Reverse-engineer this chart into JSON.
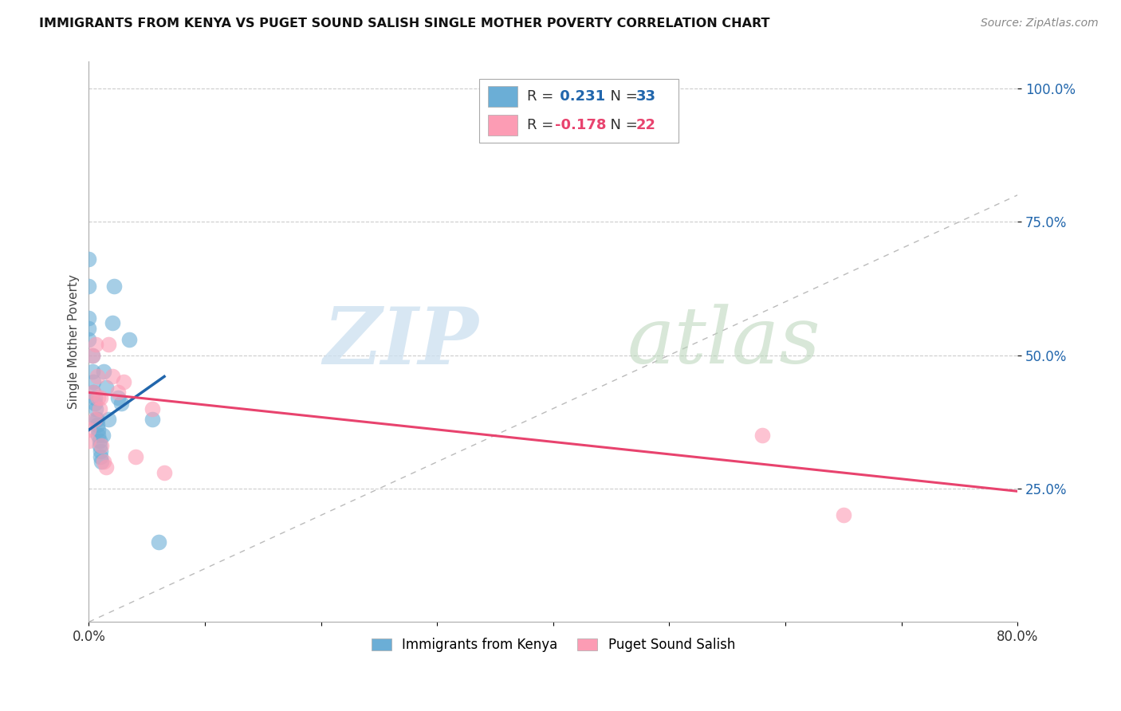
{
  "title": "IMMIGRANTS FROM KENYA VS PUGET SOUND SALISH SINGLE MOTHER POVERTY CORRELATION CHART",
  "source": "Source: ZipAtlas.com",
  "ylabel": "Single Mother Poverty",
  "xlim": [
    0.0,
    0.8
  ],
  "ylim": [
    0.0,
    1.05
  ],
  "xticks": [
    0.0,
    0.1,
    0.2,
    0.3,
    0.4,
    0.5,
    0.6,
    0.7,
    0.8
  ],
  "ytick_positions": [
    0.25,
    0.5,
    0.75,
    1.0
  ],
  "ytick_labels": [
    "25.0%",
    "50.0%",
    "75.0%",
    "100.0%"
  ],
  "blue_r": "0.231",
  "blue_n": "33",
  "pink_r": "-0.178",
  "pink_n": "22",
  "blue_color": "#6baed6",
  "pink_color": "#fc9cb4",
  "blue_line_color": "#2166ac",
  "pink_line_color": "#e8436e",
  "diag_color": "#bbbbbb",
  "blue_scatter_x": [
    0.0,
    0.0,
    0.0,
    0.0,
    0.0,
    0.003,
    0.003,
    0.004,
    0.004,
    0.005,
    0.005,
    0.006,
    0.006,
    0.007,
    0.007,
    0.008,
    0.008,
    0.009,
    0.009,
    0.01,
    0.01,
    0.011,
    0.012,
    0.013,
    0.015,
    0.017,
    0.02,
    0.022,
    0.025,
    0.028,
    0.035,
    0.055,
    0.06
  ],
  "blue_scatter_y": [
    0.68,
    0.63,
    0.57,
    0.55,
    0.53,
    0.5,
    0.47,
    0.45,
    0.43,
    0.42,
    0.41,
    0.4,
    0.38,
    0.38,
    0.37,
    0.36,
    0.35,
    0.34,
    0.33,
    0.32,
    0.31,
    0.3,
    0.35,
    0.47,
    0.44,
    0.38,
    0.56,
    0.63,
    0.42,
    0.41,
    0.53,
    0.38,
    0.15
  ],
  "pink_scatter_x": [
    0.0,
    0.0,
    0.003,
    0.004,
    0.005,
    0.006,
    0.007,
    0.008,
    0.009,
    0.01,
    0.011,
    0.013,
    0.015,
    0.017,
    0.02,
    0.025,
    0.03,
    0.04,
    0.055,
    0.065,
    0.58,
    0.65
  ],
  "pink_scatter_y": [
    0.36,
    0.34,
    0.5,
    0.43,
    0.38,
    0.52,
    0.46,
    0.42,
    0.4,
    0.42,
    0.33,
    0.3,
    0.29,
    0.52,
    0.46,
    0.43,
    0.45,
    0.31,
    0.4,
    0.28,
    0.35,
    0.2
  ],
  "blue_trendline_x": [
    0.0,
    0.065
  ],
  "blue_trendline_y": [
    0.36,
    0.46
  ],
  "pink_trendline_x": [
    0.0,
    0.8
  ],
  "pink_trendline_y": [
    0.43,
    0.245
  ],
  "bottom_legend_blue": "Immigrants from Kenya",
  "bottom_legend_pink": "Puget Sound Salish",
  "background_color": "#ffffff",
  "grid_color": "#cccccc"
}
